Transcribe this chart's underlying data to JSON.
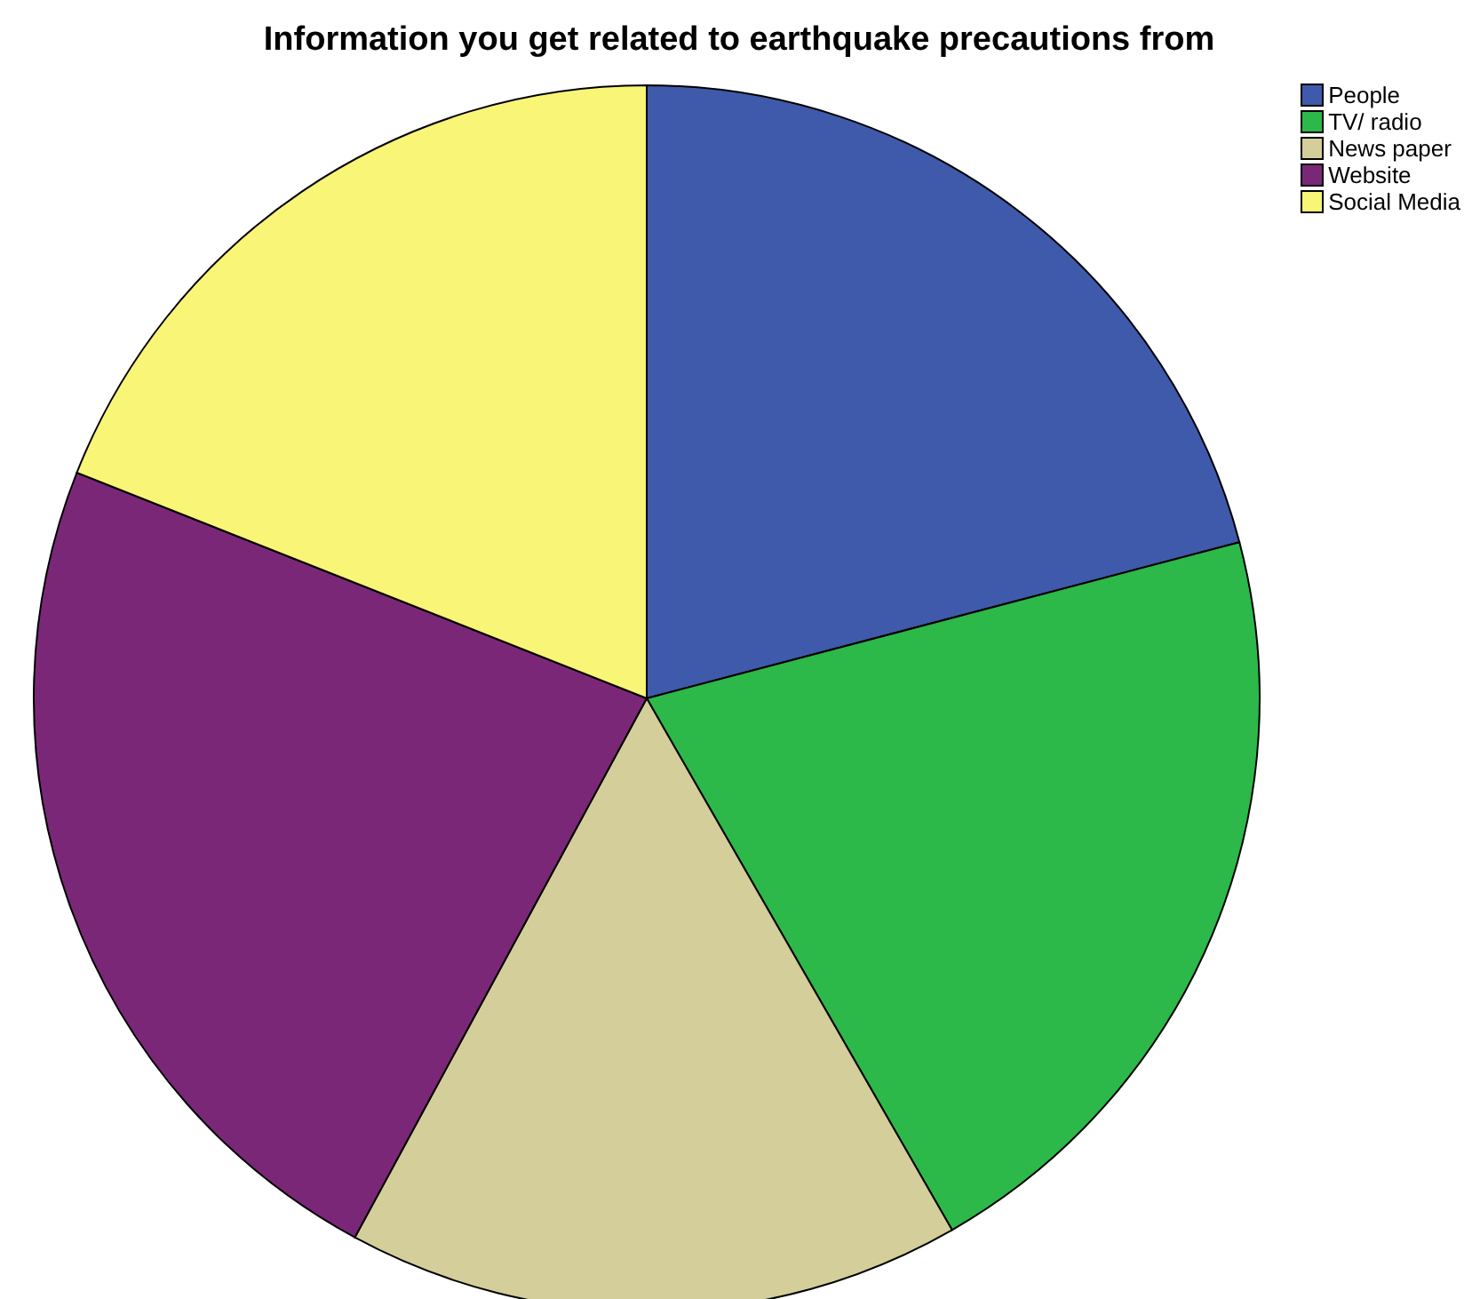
{
  "chart_data": {
    "type": "pie",
    "title": "Information you get related to earthquake precautions from",
    "categories": [
      "People",
      "TV/ radio",
      "News paper",
      "Website",
      "Social Media"
    ],
    "values": [
      20.9,
      20.8,
      16.2,
      23.1,
      19.0
    ],
    "colors": [
      "#3f5aab",
      "#2db84a",
      "#d3ce9a",
      "#7b2778",
      "#f8f577"
    ],
    "legend": "top right"
  }
}
